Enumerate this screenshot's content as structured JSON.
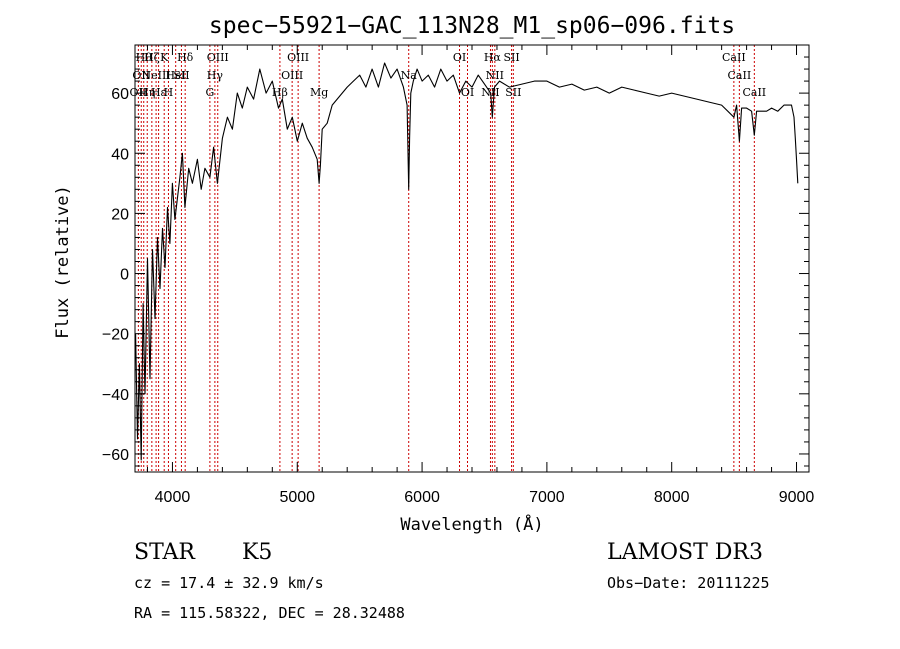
{
  "chart_data": {
    "type": "line",
    "title": "spec−55921−GAC_113N28_M1_sp06−096.fits",
    "xlabel": "Wavelength (Å)",
    "ylabel": "Flux (relative)",
    "xlim": [
      3700,
      9100
    ],
    "ylim": [
      -66,
      76
    ],
    "xticks": [
      4000,
      5000,
      6000,
      7000,
      8000,
      9000
    ],
    "xtick_labels": [
      "4000",
      "5000",
      "6000",
      "7000",
      "8000",
      "9000"
    ],
    "yticks": [
      -60,
      -40,
      -20,
      0,
      20,
      40,
      60
    ],
    "ytick_labels": [
      "−60",
      "−40",
      "−20",
      "0",
      "20",
      "40",
      "60"
    ],
    "grid": false,
    "series": [
      {
        "name": "spectrum",
        "x": [
          3705,
          3720,
          3735,
          3750,
          3765,
          3780,
          3800,
          3820,
          3840,
          3860,
          3880,
          3900,
          3920,
          3940,
          3960,
          3980,
          4000,
          4020,
          4040,
          4060,
          4080,
          4100,
          4130,
          4160,
          4200,
          4230,
          4260,
          4300,
          4330,
          4360,
          4400,
          4440,
          4480,
          4520,
          4560,
          4600,
          4650,
          4700,
          4750,
          4800,
          4850,
          4880,
          4920,
          4960,
          5000,
          5040,
          5080,
          5120,
          5160,
          5175,
          5185,
          5200,
          5240,
          5280,
          5320,
          5360,
          5400,
          5450,
          5500,
          5550,
          5600,
          5650,
          5700,
          5750,
          5800,
          5850,
          5880,
          5893,
          5900,
          5910,
          5930,
          5960,
          6000,
          6050,
          6100,
          6150,
          6200,
          6250,
          6300,
          6350,
          6400,
          6450,
          6500,
          6550,
          6563,
          6580,
          6620,
          6700,
          6800,
          6900,
          7000,
          7100,
          7200,
          7300,
          7400,
          7500,
          7600,
          7700,
          7800,
          7900,
          8000,
          8100,
          8200,
          8300,
          8400,
          8498,
          8520,
          8542,
          8560,
          8600,
          8640,
          8662,
          8680,
          8720,
          8760,
          8800,
          8850,
          8900,
          8930,
          8960,
          8980,
          8990,
          9000,
          9010
        ],
        "values": [
          -20,
          -55,
          -30,
          -62,
          -10,
          -40,
          5,
          -35,
          8,
          -15,
          12,
          -5,
          15,
          2,
          22,
          10,
          30,
          18,
          25,
          32,
          40,
          22,
          35,
          30,
          38,
          28,
          35,
          32,
          42,
          30,
          45,
          52,
          48,
          60,
          55,
          62,
          58,
          68,
          60,
          64,
          55,
          58,
          48,
          52,
          44,
          50,
          45,
          42,
          38,
          30,
          36,
          48,
          50,
          56,
          58,
          60,
          62,
          64,
          66,
          62,
          68,
          62,
          70,
          65,
          68,
          62,
          56,
          28,
          45,
          60,
          64,
          68,
          64,
          66,
          62,
          68,
          64,
          66,
          60,
          64,
          62,
          66,
          63,
          60,
          52,
          62,
          64,
          62,
          63,
          64,
          64,
          62,
          63,
          61,
          62,
          60,
          62,
          61,
          60,
          59,
          60,
          59,
          58,
          57,
          56,
          52,
          56,
          44,
          55,
          55,
          54,
          46,
          54,
          54,
          54,
          55,
          54,
          56,
          56,
          56,
          52,
          45,
          38,
          30
        ]
      }
    ],
    "line_markers": [
      {
        "wl": 3727,
        "label": "OII",
        "row": 3
      },
      {
        "wl": 3750,
        "label": "OII",
        "row": 2
      },
      {
        "wl": 3770,
        "label": "Hθ",
        "row": 1
      },
      {
        "wl": 3798,
        "label": "Hη",
        "row": 3
      },
      {
        "wl": 3835,
        "label": "Hζ",
        "row": 1
      },
      {
        "wl": 3869,
        "label": "NeIII",
        "row": 2
      },
      {
        "wl": 3889,
        "label": "Hε",
        "row": 3
      },
      {
        "wl": 3934,
        "label": "K",
        "row": 1
      },
      {
        "wl": 3968,
        "label": "H",
        "row": 3
      },
      {
        "wl": 4026,
        "label": "HeI",
        "row": 2
      },
      {
        "wl": 4072,
        "label": "SII",
        "row": 2
      },
      {
        "wl": 4102,
        "label": "Hδ",
        "row": 1
      },
      {
        "wl": 4300,
        "label": "G",
        "row": 3
      },
      {
        "wl": 4340,
        "label": "Hγ",
        "row": 2
      },
      {
        "wl": 4363,
        "label": "OIII",
        "row": 1
      },
      {
        "wl": 4861,
        "label": "Hβ",
        "row": 3
      },
      {
        "wl": 4959,
        "label": "OIII",
        "row": 2
      },
      {
        "wl": 5007,
        "label": "OIII",
        "row": 1
      },
      {
        "wl": 5175,
        "label": "Mg",
        "row": 3
      },
      {
        "wl": 5893,
        "label": "Na",
        "row": 2
      },
      {
        "wl": 6300,
        "label": "OI",
        "row": 1
      },
      {
        "wl": 6364,
        "label": "OI",
        "row": 3
      },
      {
        "wl": 6548,
        "label": "NII",
        "row": 3
      },
      {
        "wl": 6563,
        "label": "Hα",
        "row": 1
      },
      {
        "wl": 6583,
        "label": "NII",
        "row": 2
      },
      {
        "wl": 6717,
        "label": "SII",
        "row": 1
      },
      {
        "wl": 6731,
        "label": "SII",
        "row": 3
      },
      {
        "wl": 8498,
        "label": "CaII",
        "row": 1
      },
      {
        "wl": 8542,
        "label": "CaII",
        "row": 2
      },
      {
        "wl": 8662,
        "label": "CaII",
        "row": 3
      }
    ],
    "colors": {
      "spectrum": "#000000",
      "line_markers": "#cc0000",
      "axes": "#000000"
    }
  },
  "info": {
    "class": "STAR",
    "subclass": "K5",
    "survey": "LAMOST DR3",
    "cz": "cz = 17.4 ± 32.9 km/s",
    "obs_date": "Obs−Date: 20111225",
    "coords": "RA = 115.58322, DEC =  28.32488"
  }
}
